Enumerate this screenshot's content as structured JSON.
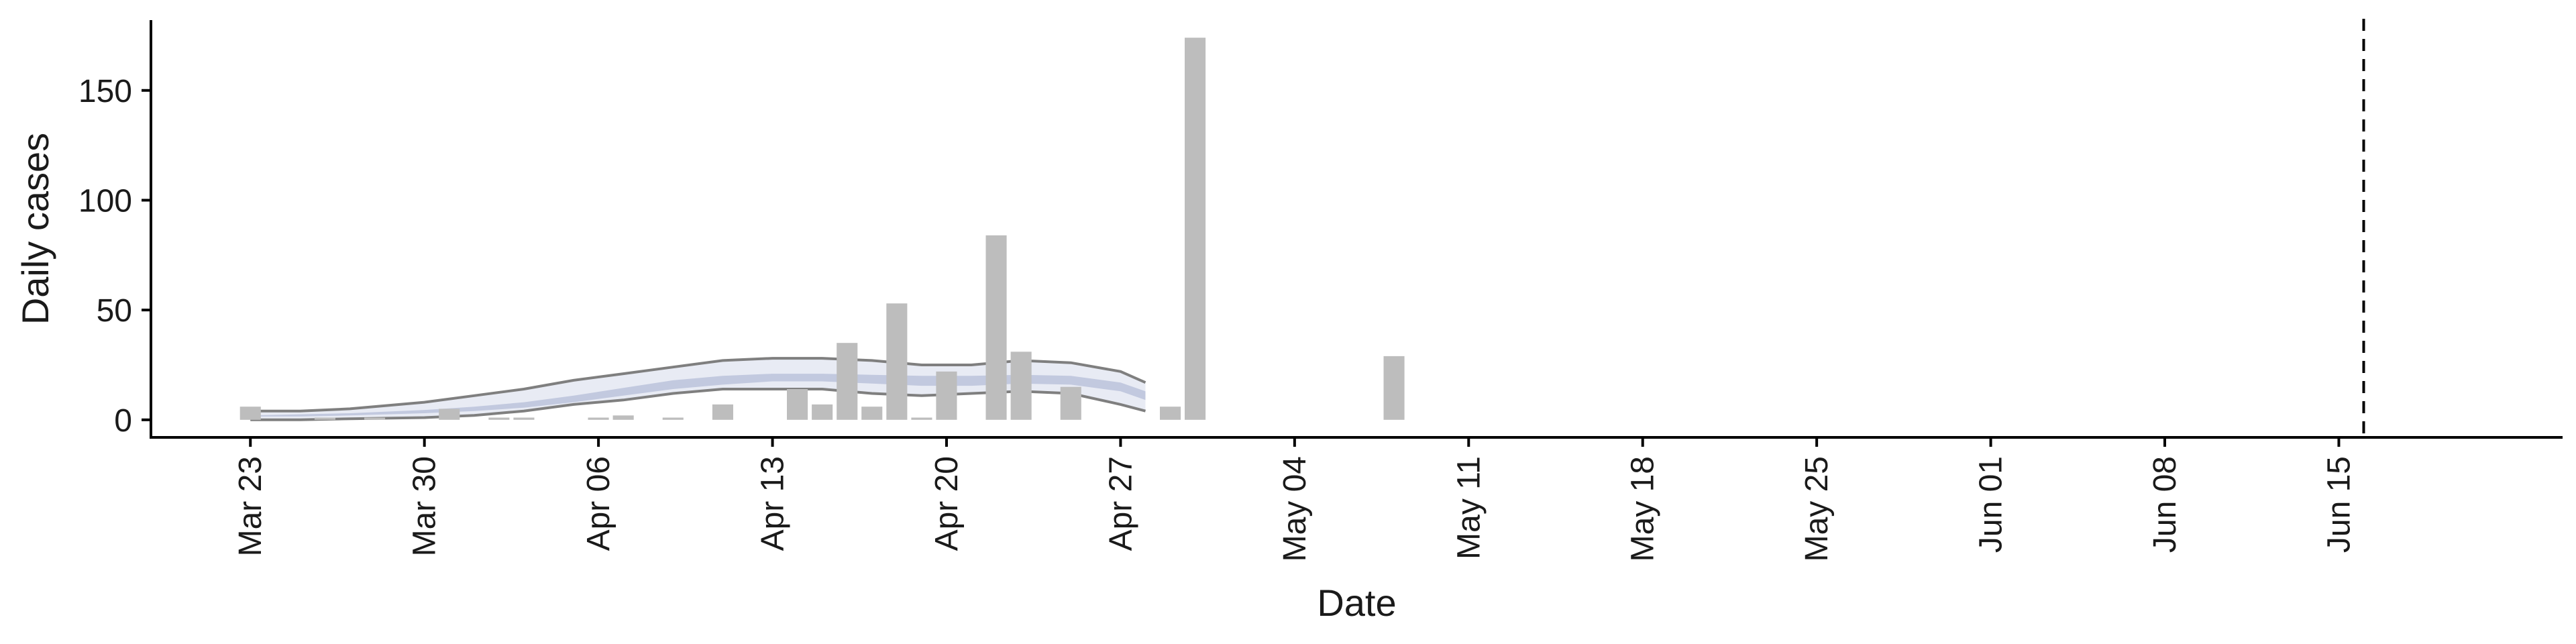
{
  "chart_data": {
    "type": "bar",
    "title": "",
    "xlabel": "Date",
    "ylabel": "Daily cases",
    "x_axis": {
      "type": "date",
      "start": "2020-03-19",
      "end": "2020-06-24",
      "ticks": [
        "2020-03-23",
        "2020-03-30",
        "2020-04-06",
        "2020-04-13",
        "2020-04-20",
        "2020-04-27",
        "2020-05-04",
        "2020-05-11",
        "2020-05-18",
        "2020-05-25",
        "2020-06-01",
        "2020-06-08",
        "2020-06-15"
      ],
      "tick_labels": [
        "Mar 23",
        "Mar 30",
        "Apr 06",
        "Apr 13",
        "Apr 20",
        "Apr 27",
        "May 04",
        "May 11",
        "May 18",
        "May 25",
        "Jun 01",
        "Jun 08",
        "Jun 15"
      ]
    },
    "y_axis": {
      "ylim": [
        -8,
        182
      ],
      "ticks": [
        0,
        50,
        100,
        150
      ],
      "tick_labels": [
        "0",
        "50",
        "100",
        "150"
      ]
    },
    "bars": {
      "color": "#bdbdbd",
      "dates": [
        "2020-03-23",
        "2020-03-26",
        "2020-03-28",
        "2020-03-31",
        "2020-04-02",
        "2020-04-03",
        "2020-04-06",
        "2020-04-07",
        "2020-04-09",
        "2020-04-11",
        "2020-04-14",
        "2020-04-15",
        "2020-04-16",
        "2020-04-17",
        "2020-04-18",
        "2020-04-19",
        "2020-04-20",
        "2020-04-22",
        "2020-04-23",
        "2020-04-25",
        "2020-04-29",
        "2020-04-30",
        "2020-05-08"
      ],
      "values": [
        6,
        1,
        1,
        5,
        1,
        1,
        1,
        2,
        1,
        7,
        14,
        7,
        35,
        6,
        53,
        1,
        22,
        84,
        31,
        15,
        6,
        174,
        29
      ]
    },
    "ribbon": {
      "dates": [
        "2020-03-23",
        "2020-03-25",
        "2020-03-27",
        "2020-03-30",
        "2020-04-01",
        "2020-04-03",
        "2020-04-05",
        "2020-04-07",
        "2020-04-09",
        "2020-04-11",
        "2020-04-13",
        "2020-04-15",
        "2020-04-17",
        "2020-04-19",
        "2020-04-21",
        "2020-04-23",
        "2020-04-25",
        "2020-04-27",
        "2020-04-28"
      ],
      "outer_upper": [
        4,
        4,
        5,
        8,
        11,
        14,
        18,
        21,
        24,
        27,
        28,
        28,
        27,
        25,
        25,
        27,
        26,
        22,
        17
      ],
      "inner_upper": [
        2,
        2.5,
        3,
        4.5,
        6,
        8,
        11,
        14.5,
        18,
        20,
        21,
        21,
        20.5,
        20,
        20,
        20.5,
        20,
        17,
        13
      ],
      "inner_lower": [
        1.5,
        1.5,
        2,
        3,
        4,
        5.5,
        8,
        11,
        14,
        16,
        17.5,
        17.5,
        16.5,
        15.5,
        15.5,
        16.5,
        16,
        13,
        9
      ],
      "outer_lower": [
        0,
        0,
        0.5,
        1,
        2,
        4,
        7,
        9,
        12,
        14,
        14,
        14,
        12,
        11,
        12,
        13,
        12,
        7,
        4
      ],
      "light_color": "#e8ebf4",
      "dark_color": "#c2c9df",
      "line_color": "#7f7f7f"
    },
    "reference_line": {
      "date": "2020-06-16",
      "style": "dashed",
      "color": "#000000"
    },
    "grid": false,
    "legend": "none"
  }
}
